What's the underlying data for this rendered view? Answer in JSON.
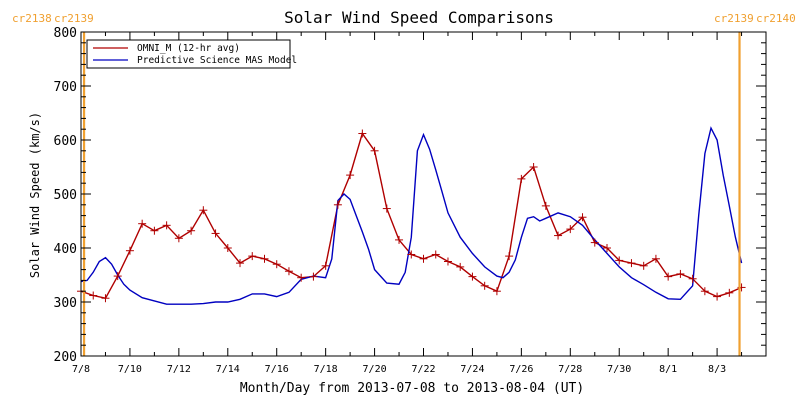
{
  "chart_data": {
    "type": "line",
    "title": "Solar Wind Speed Comparisons",
    "xlabel": "Month/Day from 2013-07-08 to 2013-08-04 (UT)",
    "ylabel": "Solar Wind Speed (km/s)",
    "xlim": [
      "2013-07-08",
      "2013-08-04"
    ],
    "ylim": [
      200,
      800
    ],
    "x_tick_labels": [
      "7/8",
      "7/10",
      "7/12",
      "7/14",
      "7/16",
      "7/18",
      "7/20",
      "7/22",
      "7/24",
      "7/26",
      "7/28",
      "7/30",
      "8/1",
      "8/3"
    ],
    "x_tick_dates": [
      "2013-07-08",
      "2013-07-10",
      "2013-07-12",
      "2013-07-14",
      "2013-07-16",
      "2013-07-18",
      "2013-07-20",
      "2013-07-22",
      "2013-07-24",
      "2013-07-26",
      "2013-07-28",
      "2013-07-30",
      "2013-08-01",
      "2013-08-03"
    ],
    "y_ticks": [
      200,
      300,
      400,
      500,
      600,
      700,
      800
    ],
    "legend_position": "top-left",
    "carrington_markers": [
      {
        "date": "2013-07-08 03:00",
        "labels": [
          "cr2138",
          "cr2139"
        ],
        "color": "#f0a030"
      },
      {
        "date": "2013-08-03 22:00",
        "labels": [
          "cr2139",
          "cr2140"
        ],
        "color": "#f0a030"
      }
    ],
    "series": [
      {
        "name": "OMNI_M (12-hr avg)",
        "color": "#b00000",
        "marker": "+",
        "x": [
          "2013-07-08 00:00",
          "2013-07-08 12:00",
          "2013-07-09 00:00",
          "2013-07-09 12:00",
          "2013-07-10 00:00",
          "2013-07-10 12:00",
          "2013-07-11 00:00",
          "2013-07-11 12:00",
          "2013-07-12 00:00",
          "2013-07-12 12:00",
          "2013-07-13 00:00",
          "2013-07-13 12:00",
          "2013-07-14 00:00",
          "2013-07-14 12:00",
          "2013-07-15 00:00",
          "2013-07-15 12:00",
          "2013-07-16 00:00",
          "2013-07-16 12:00",
          "2013-07-17 00:00",
          "2013-07-17 12:00",
          "2013-07-18 00:00",
          "2013-07-18 12:00",
          "2013-07-19 00:00",
          "2013-07-19 12:00",
          "2013-07-20 00:00",
          "2013-07-20 12:00",
          "2013-07-21 00:00",
          "2013-07-21 12:00",
          "2013-07-22 00:00",
          "2013-07-22 12:00",
          "2013-07-23 00:00",
          "2013-07-23 12:00",
          "2013-07-24 00:00",
          "2013-07-24 12:00",
          "2013-07-25 00:00",
          "2013-07-25 12:00",
          "2013-07-26 00:00",
          "2013-07-26 12:00",
          "2013-07-27 00:00",
          "2013-07-27 12:00",
          "2013-07-28 00:00",
          "2013-07-28 12:00",
          "2013-07-29 00:00",
          "2013-07-29 12:00",
          "2013-07-30 00:00",
          "2013-07-30 12:00",
          "2013-07-31 00:00",
          "2013-07-31 12:00",
          "2013-08-01 00:00",
          "2013-08-01 12:00",
          "2013-08-02 00:00",
          "2013-08-02 12:00",
          "2013-08-03 00:00",
          "2013-08-03 12:00",
          "2013-08-04 00:00"
        ],
        "values": [
          320,
          312,
          307,
          348,
          395,
          445,
          432,
          442,
          418,
          432,
          470,
          427,
          400,
          372,
          385,
          380,
          370,
          357,
          345,
          347,
          367,
          480,
          535,
          612,
          580,
          473,
          415,
          388,
          380,
          388,
          375,
          365,
          347,
          330,
          320,
          385,
          528,
          550,
          478,
          423,
          435,
          457,
          410,
          400,
          377,
          372,
          367,
          380,
          347,
          352,
          343,
          320,
          310,
          317,
          327
        ]
      },
      {
        "name": "Predictive Science MAS Model",
        "color": "#0000c0",
        "x": [
          "2013-07-08 00:00",
          "2013-07-08 06:00",
          "2013-07-08 12:00",
          "2013-07-08 18:00",
          "2013-07-09 00:00",
          "2013-07-09 06:00",
          "2013-07-09 12:00",
          "2013-07-09 18:00",
          "2013-07-10 00:00",
          "2013-07-10 12:00",
          "2013-07-11 00:00",
          "2013-07-11 12:00",
          "2013-07-12 00:00",
          "2013-07-12 12:00",
          "2013-07-13 00:00",
          "2013-07-13 12:00",
          "2013-07-14 00:00",
          "2013-07-14 12:00",
          "2013-07-15 00:00",
          "2013-07-15 12:00",
          "2013-07-16 00:00",
          "2013-07-16 12:00",
          "2013-07-17 00:00",
          "2013-07-17 12:00",
          "2013-07-18 00:00",
          "2013-07-18 06:00",
          "2013-07-18 12:00",
          "2013-07-18 18:00",
          "2013-07-19 00:00",
          "2013-07-19 06:00",
          "2013-07-19 12:00",
          "2013-07-19 18:00",
          "2013-07-20 00:00",
          "2013-07-20 12:00",
          "2013-07-21 00:00",
          "2013-07-21 06:00",
          "2013-07-21 12:00",
          "2013-07-21 18:00",
          "2013-07-22 00:00",
          "2013-07-22 06:00",
          "2013-07-22 12:00",
          "2013-07-22 18:00",
          "2013-07-23 00:00",
          "2013-07-23 12:00",
          "2013-07-24 00:00",
          "2013-07-24 12:00",
          "2013-07-25 00:00",
          "2013-07-25 06:00",
          "2013-07-25 12:00",
          "2013-07-25 18:00",
          "2013-07-26 00:00",
          "2013-07-26 06:00",
          "2013-07-26 12:00",
          "2013-07-26 18:00",
          "2013-07-27 00:00",
          "2013-07-27 12:00",
          "2013-07-28 00:00",
          "2013-07-28 12:00",
          "2013-07-29 00:00",
          "2013-07-29 12:00",
          "2013-07-30 00:00",
          "2013-07-30 12:00",
          "2013-07-31 00:00",
          "2013-07-31 12:00",
          "2013-08-01 00:00",
          "2013-08-01 12:00",
          "2013-08-02 00:00",
          "2013-08-02 06:00",
          "2013-08-02 12:00",
          "2013-08-02 18:00",
          "2013-08-03 00:00",
          "2013-08-03 06:00",
          "2013-08-03 12:00",
          "2013-08-03 18:00",
          "2013-08-04 00:00"
        ],
        "values": [
          338,
          340,
          355,
          375,
          382,
          370,
          350,
          333,
          322,
          308,
          302,
          296,
          296,
          296,
          297,
          300,
          300,
          305,
          315,
          315,
          310,
          318,
          342,
          348,
          345,
          380,
          488,
          500,
          490,
          460,
          430,
          398,
          360,
          335,
          333,
          355,
          420,
          580,
          610,
          583,
          545,
          505,
          465,
          420,
          390,
          365,
          348,
          345,
          355,
          378,
          420,
          455,
          458,
          450,
          455,
          465,
          458,
          442,
          415,
          390,
          365,
          345,
          332,
          318,
          306,
          305,
          330,
          460,
          575,
          622,
          600,
          535,
          478,
          420,
          372
        ]
      }
    ]
  }
}
